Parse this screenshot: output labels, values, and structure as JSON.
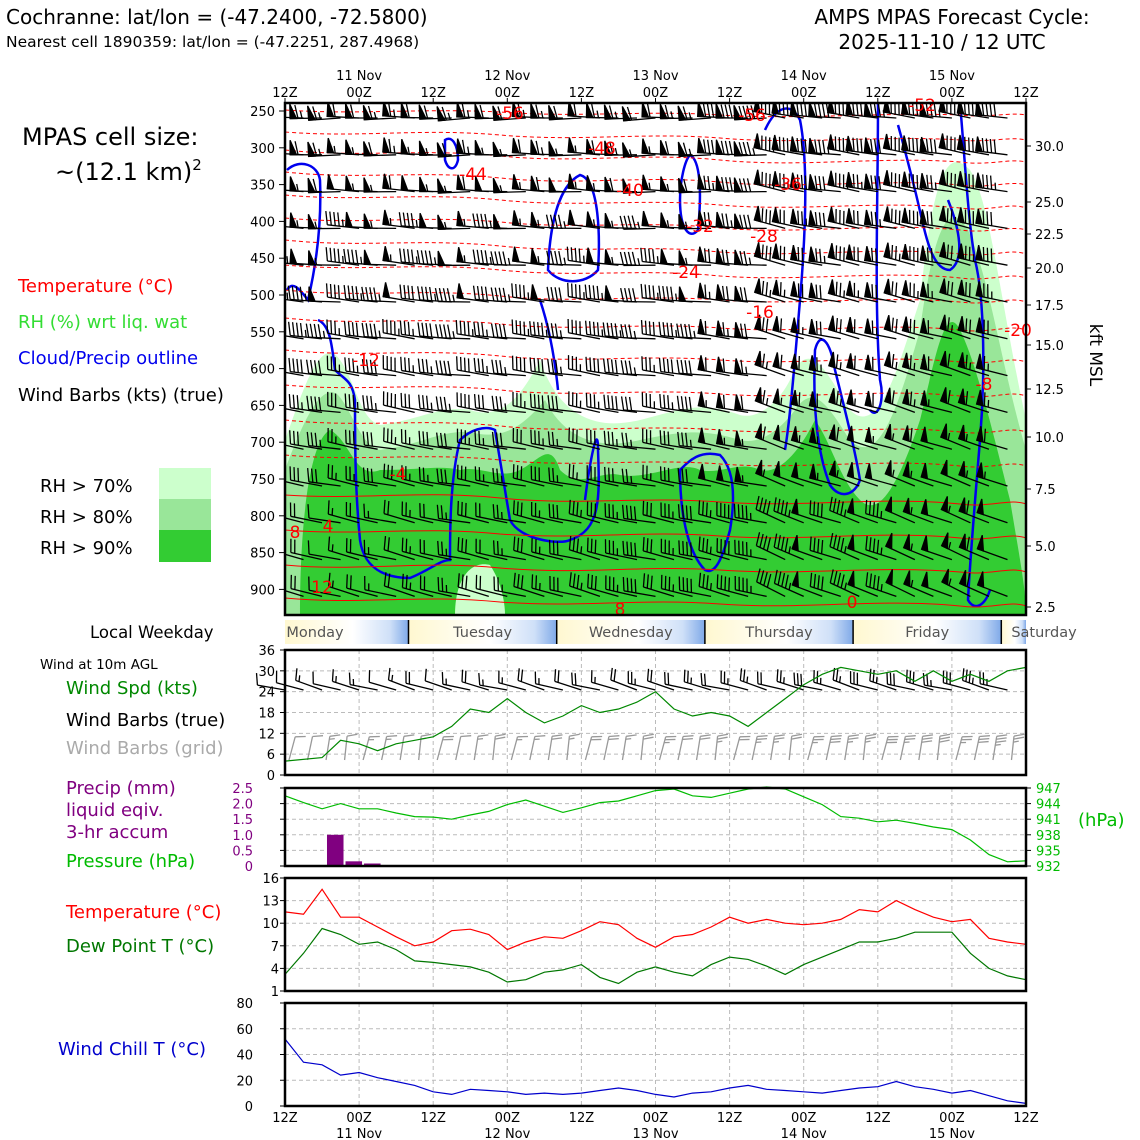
{
  "header": {
    "location": "Cochranne: lat/lon = (-47.2400, -72.5800)",
    "nearest_cell": "Nearest cell 1890359: lat/lon = (-47.2251, 287.4968)",
    "cycle_title": "AMPS MPAS Forecast Cycle:",
    "cycle_time": "2025-11-10 / 12 UTC"
  },
  "left_legend": {
    "cell_size_label": "MPAS cell size:",
    "cell_size_value": "~(12.1 km)",
    "cell_size_exp": "2",
    "temperature": "Temperature (°C)",
    "rh": "RH (%) wrt liq. wat",
    "cloud": "Cloud/Precip outline",
    "wind_barbs": "Wind Barbs (kts) (true)",
    "rh70": "RH > 70%",
    "rh80": "RH > 80%",
    "rh90": "RH > 90%",
    "local_weekday": "Local Weekday",
    "wind10m": "Wind at 10m AGL",
    "wind_spd": "Wind Spd (kts)",
    "wind_barbs_true": "Wind Barbs (true)",
    "wind_barbs_grid": "Wind Barbs (grid)",
    "precip1": "Precip (mm)",
    "precip2": "liquid eqiv.",
    "precip3": "3-hr accum",
    "pressure": "Pressure (hPa)",
    "temp2": "Temperature (°C)",
    "dewpoint": "Dew Point T (°C)",
    "windchill": "Wind Chill T (°C)"
  },
  "colors": {
    "temperature": "#ff0000",
    "rh_label": "#33dd33",
    "rh70": "#ccffcc",
    "rh80": "#99e699",
    "rh90": "#33cc33",
    "cloud": "#0000ee",
    "precip": "#800080",
    "pressure": "#00bb00",
    "dewpoint": "#007700",
    "windchill": "#0000cc",
    "wind_spd": "#008800"
  },
  "time_axis": {
    "top_hours": [
      "12Z",
      "00Z",
      "12Z",
      "00Z",
      "12Z",
      "00Z",
      "12Z",
      "00Z",
      "12Z",
      "00Z",
      "12Z"
    ],
    "dates": [
      "11 Nov",
      "12 Nov",
      "13 Nov",
      "14 Nov",
      "15 Nov"
    ],
    "weekdays": [
      "Monday",
      "Tuesday",
      "Wednesday",
      "Thursday",
      "Friday",
      "Saturday"
    ]
  },
  "chart_data": [
    {
      "type": "line",
      "name": "vertical time-section",
      "y_label_right": "kft MSL",
      "pressure_ticks": [
        "250",
        "300",
        "350",
        "400",
        "450",
        "500",
        "550",
        "600",
        "650",
        "700",
        "750",
        "800",
        "850",
        "900"
      ],
      "kft_ticks": [
        "30.0",
        "25.0",
        "22.5",
        "20.0",
        "17.5",
        "15.0",
        "12.5",
        "10.0",
        "7.5",
        "5.0",
        "2.5"
      ],
      "temperature_contour_labels": [
        "-56",
        "-56",
        "-52",
        "-48",
        "-44",
        "-40",
        "-36",
        "-32",
        "-28",
        "-24",
        "-20",
        "-16",
        "-12",
        "-8",
        "-4",
        "4",
        "8",
        "12",
        "8",
        "0"
      ]
    },
    {
      "type": "line",
      "name": "wind speed",
      "y_ticks": [
        "0",
        "6",
        "12",
        "18",
        "24",
        "30",
        "36"
      ],
      "ylim": [
        0,
        36
      ],
      "x_hours": [
        0,
        6,
        9,
        12,
        15,
        18,
        21,
        24,
        27,
        30,
        33,
        36,
        39,
        42,
        45,
        48,
        51,
        54,
        57,
        60,
        63,
        66,
        69,
        72,
        75,
        78,
        81,
        84,
        87,
        90,
        93,
        96,
        99,
        102,
        105,
        108,
        111,
        114,
        117,
        120
      ],
      "values": [
        4,
        5,
        10,
        9,
        7,
        9,
        10,
        11,
        14,
        19,
        18,
        22,
        18,
        15,
        17,
        20,
        18,
        19,
        21,
        24,
        19,
        17,
        18,
        17,
        14,
        18,
        22,
        26,
        29,
        31,
        30,
        29,
        30,
        27,
        30,
        27,
        29,
        27,
        30,
        31
      ]
    },
    {
      "type": "bar",
      "name": "precip",
      "y_ticks": [
        "0",
        "0.5",
        "1.0",
        "1.5",
        "2.0",
        "2.5"
      ],
      "ylim": [
        0,
        2.5
      ],
      "x_hours": [
        6,
        9,
        12
      ],
      "values": [
        1.0,
        0.15,
        0.08
      ]
    },
    {
      "type": "line",
      "name": "pressure",
      "y_ticks": [
        "932",
        "935",
        "938",
        "941",
        "944",
        "947"
      ],
      "ylim": [
        932,
        947
      ],
      "x_hours": [
        0,
        3,
        6,
        9,
        12,
        15,
        18,
        21,
        24,
        27,
        30,
        33,
        36,
        39,
        42,
        45,
        48,
        51,
        54,
        57,
        60,
        63,
        66,
        69,
        72,
        75,
        78,
        81,
        84,
        87,
        90,
        93,
        96,
        99,
        102,
        105,
        108,
        111,
        114,
        117,
        120
      ],
      "values": [
        945.5,
        944.2,
        943.0,
        944.0,
        943.0,
        943.0,
        942.2,
        941.5,
        941.4,
        941.0,
        941.8,
        942.5,
        943.8,
        944.7,
        943.5,
        942.3,
        943.2,
        944.2,
        944.5,
        945.5,
        946.5,
        946.8,
        945.5,
        945.2,
        946.0,
        946.8,
        947.2,
        946.8,
        945.3,
        943.8,
        941.5,
        941.2,
        940.5,
        940.8,
        940.2,
        939.5,
        939.0,
        937.0,
        934.2,
        932.8,
        933.0
      ]
    },
    {
      "type": "line",
      "name": "temperature and dew point",
      "y_ticks": [
        "1",
        "4",
        "7",
        "10",
        "13",
        "16"
      ],
      "ylim": [
        1,
        16
      ],
      "x_hours": [
        0,
        3,
        6,
        9,
        12,
        15,
        18,
        21,
        24,
        27,
        30,
        33,
        36,
        39,
        42,
        45,
        48,
        51,
        54,
        57,
        60,
        63,
        66,
        69,
        72,
        75,
        78,
        81,
        84,
        87,
        90,
        93,
        96,
        99,
        102,
        105,
        108,
        111,
        114,
        117,
        120
      ],
      "series": [
        {
          "name": "Temperature (°C)",
          "values": [
            11.5,
            11.2,
            14.5,
            10.8,
            10.8,
            9.5,
            8.2,
            7.0,
            7.5,
            9.0,
            9.2,
            8.5,
            6.5,
            7.5,
            8.2,
            8.0,
            9.0,
            10.2,
            9.8,
            8.0,
            6.8,
            8.2,
            8.5,
            9.5,
            10.8,
            10.0,
            10.5,
            10.0,
            9.8,
            10.0,
            10.5,
            11.8,
            11.5,
            13.0,
            11.8,
            10.8,
            10.2,
            10.5,
            8.0,
            7.5,
            7.2
          ]
        },
        {
          "name": "Dew Point T (°C)",
          "values": [
            3.2,
            6.0,
            9.3,
            8.5,
            7.2,
            7.5,
            6.5,
            5.0,
            4.8,
            4.5,
            4.2,
            3.5,
            2.2,
            2.5,
            3.5,
            3.8,
            4.5,
            2.8,
            2.0,
            3.5,
            4.2,
            3.5,
            3.0,
            4.5,
            5.5,
            5.2,
            4.3,
            3.2,
            4.5,
            5.5,
            6.5,
            7.5,
            7.5,
            8.0,
            8.8,
            8.8,
            8.8,
            6.0,
            4.0,
            3.0,
            2.5
          ]
        }
      ]
    },
    {
      "type": "line",
      "name": "wind chill",
      "y_ticks": [
        "0",
        "20",
        "40",
        "60",
        "80"
      ],
      "ylim": [
        0,
        80
      ],
      "x_hours": [
        0,
        3,
        6,
        9,
        12,
        15,
        18,
        21,
        24,
        27,
        30,
        33,
        36,
        39,
        42,
        45,
        48,
        51,
        54,
        57,
        60,
        63,
        66,
        69,
        72,
        75,
        78,
        81,
        84,
        87,
        90,
        93,
        96,
        99,
        102,
        105,
        108,
        111,
        114,
        117,
        120
      ],
      "values": [
        52,
        34,
        32,
        24,
        26,
        22,
        19,
        16,
        11,
        9,
        13,
        12,
        11,
        9,
        10,
        9,
        10,
        12,
        14,
        12,
        9,
        7,
        10,
        11,
        14,
        16,
        13,
        12,
        11,
        10,
        12,
        14,
        15,
        19,
        15,
        13,
        10,
        12,
        8,
        4,
        2
      ]
    }
  ]
}
